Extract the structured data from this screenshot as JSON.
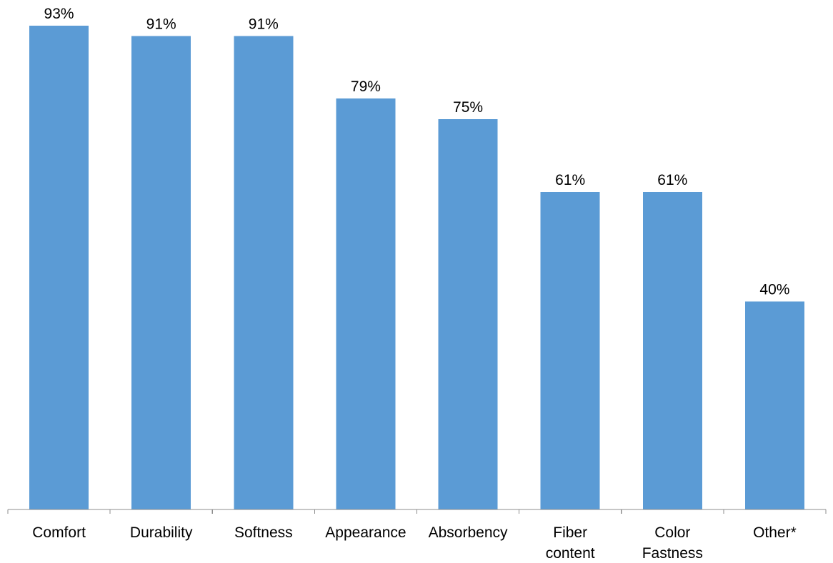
{
  "chart_data": {
    "type": "bar",
    "categories": [
      [
        "Comfort"
      ],
      [
        "Durability"
      ],
      [
        "Softness"
      ],
      [
        "Appearance"
      ],
      [
        "Absorbency"
      ],
      [
        "Fiber",
        "content"
      ],
      [
        "Color",
        "Fastness"
      ],
      [
        "Other*"
      ]
    ],
    "values": [
      93,
      91,
      91,
      79,
      75,
      61,
      61,
      40
    ],
    "data_labels": [
      "93%",
      "91%",
      "91%",
      "79%",
      "75%",
      "61%",
      "61%",
      "40%"
    ],
    "title": "",
    "xlabel": "",
    "ylabel": "",
    "ylim": [
      0,
      96
    ],
    "grid": false,
    "legend": "none",
    "bar_color": "#5b9bd5",
    "axis_color": "#8c8c8c"
  }
}
